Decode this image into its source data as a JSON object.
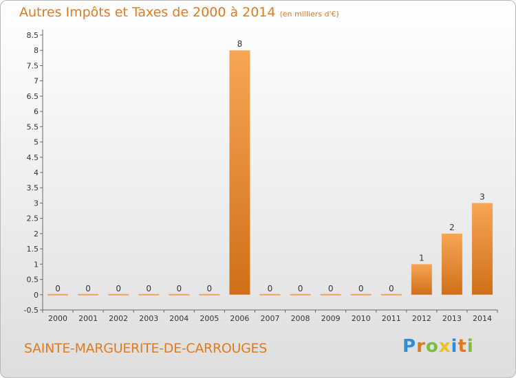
{
  "header": {
    "title": "Autres Impôts et Taxes de 2000 à 2014",
    "subtitle": "(en milliers d'€)"
  },
  "footer": {
    "commune": "SAINTE-MARGUERITE-DE-CARROUGES",
    "logo": "Proxiti"
  },
  "colors": {
    "bar_top": "#f7a655",
    "bar_bottom": "#d06f18",
    "accent": "#e07a1f"
  },
  "chart_data": {
    "type": "bar",
    "title": "Autres Impôts et Taxes de 2000 à 2014",
    "subtitle": "(en milliers d'€)",
    "categories": [
      "2000",
      "2001",
      "2002",
      "2003",
      "2004",
      "2005",
      "2006",
      "2007",
      "2008",
      "2009",
      "2010",
      "2011",
      "2012",
      "2013",
      "2014"
    ],
    "values": [
      0,
      0,
      0,
      0,
      0,
      0,
      8,
      0,
      0,
      0,
      0,
      0,
      1,
      2,
      3
    ],
    "data_labels": [
      "0",
      "0",
      "0",
      "0",
      "0",
      "0",
      "8",
      "0",
      "0",
      "0",
      "0",
      "0",
      "1",
      "2",
      "3"
    ],
    "ylim": [
      -0.5,
      8.5
    ],
    "yticks": [
      "-0.5",
      "0",
      "0.5",
      "1",
      "1.5",
      "2",
      "2.5",
      "3",
      "3.5",
      "4",
      "4.5",
      "5",
      "5.5",
      "6",
      "6.5",
      "7",
      "7.5",
      "8",
      "8.5"
    ],
    "ytick_values": [
      -0.5,
      0,
      0.5,
      1,
      1.5,
      2,
      2.5,
      3,
      3.5,
      4,
      4.5,
      5,
      5.5,
      6,
      6.5,
      7,
      7.5,
      8,
      8.5
    ],
    "grid": false,
    "xlabel": "",
    "ylabel": ""
  }
}
